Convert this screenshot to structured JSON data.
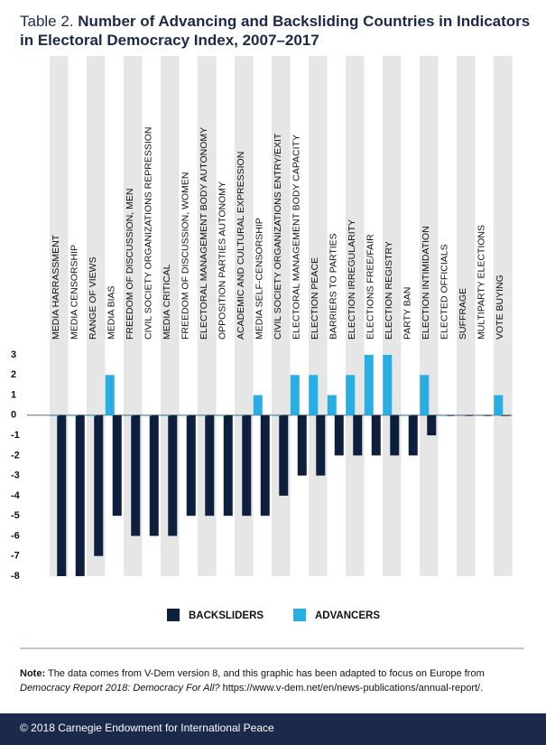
{
  "chart_data": {
    "type": "bar",
    "title_label": "Table 2.",
    "title": "Number of Advancing and Backsliding Countries in Indicators in Electoral Democracy Index, 2007–2017",
    "categories": [
      "MEDIA HARRASSMENT",
      "MEDIA CENSORSHIP",
      "RANGE OF VIEWS",
      "MEDIA BIAS",
      "FREEDOM OF DISCUSSION, MEN",
      "CIVIL SOCIETY ORGANIZATIONS REPRESSION",
      "MEDIA CRITICAL",
      "FREEDOM OF DISCUSSION, WOMEN",
      "ELECTORAL MANAGEMENT BODY AUTONOMY",
      "OPPOSITION PARTIES AUTONOMY",
      "ACADEMIC AND CULTURAL EXPRESSION",
      "MEDIA SELF-CENSORSHIP",
      "CIVIL SOCIETY ORGANIZATIONS ENTRY/EXIT",
      "ELECTORAL MANAGEMENT BODY CAPACITY",
      "ELECTION PEACE",
      "BARRIERS TO PARTIES",
      "ELECTION IRREGULARITY",
      "ELECTIONS FREE/FAIR",
      "ELECTION REGISTRY",
      "PARTY BAN",
      "ELECTION INTIMIDATION",
      "ELECTED OFFICIALS",
      "SUFFRAGE",
      "MULTIPARTY ELECTIONS",
      "VOTE BUYING"
    ],
    "series": [
      {
        "name": "BACKSLIDERS",
        "color": "#0d1f3c",
        "values": [
          -8,
          -8,
          -7,
          -5,
          -6,
          -6,
          -6,
          -5,
          -5,
          -5,
          -5,
          -5,
          -4,
          -3,
          -3,
          -2,
          -2,
          -2,
          -2,
          -2,
          -1,
          0,
          0,
          0,
          0
        ]
      },
      {
        "name": "ADVANCERS",
        "color": "#29aee4",
        "values": [
          0,
          0,
          0,
          2,
          0,
          0,
          0,
          0,
          0,
          0,
          0,
          1,
          0,
          2,
          2,
          1,
          2,
          3,
          3,
          0,
          2,
          0,
          0,
          0,
          1
        ]
      }
    ],
    "ylim": [
      -8,
      3
    ],
    "yticks": [
      -8,
      -7,
      -6,
      -5,
      -4,
      -3,
      -2,
      -1,
      0,
      1,
      2,
      3
    ]
  },
  "note": {
    "label": "Note:",
    "text": "The data comes from V-Dem version 8, and this graphic has been adapted to focus on Europe from",
    "source": "Democracy Report 2018: Democracy For All?",
    "url": "https://www.v-dem.net/en/news-publications/annual-report/."
  },
  "footer": "© 2018 Carnegie Endowment for International Peace"
}
